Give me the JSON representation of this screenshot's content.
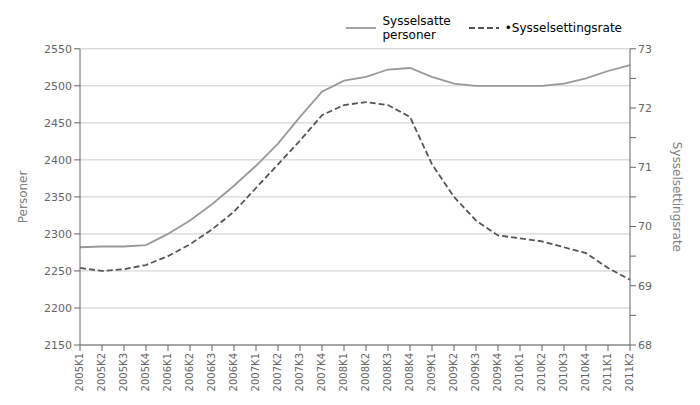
{
  "chart_data": {
    "type": "line",
    "categories": [
      "2005K1",
      "2005K2",
      "2005K3",
      "2005K4",
      "2006K1",
      "2006K2",
      "2006K3",
      "2006K4",
      "2007K1",
      "2007K2",
      "2007K3",
      "2007K4",
      "2008K1",
      "2008K2",
      "2008K3",
      "2008K4",
      "2009K1",
      "2009K2",
      "2009K3",
      "2009K4",
      "2010K1",
      "2010K2",
      "2010K3",
      "2010K4",
      "2011K1",
      "2011K2"
    ],
    "series": [
      {
        "name": "Sysselsatte\npersoner",
        "color": "#999999",
        "line_style": "solid",
        "values": [
          2282,
          2283,
          2283,
          2285,
          2300,
          2318,
          2340,
          2365,
          2392,
          2422,
          2458,
          2492,
          2507,
          2512,
          2522,
          2524,
          2512,
          2503,
          2500,
          2500,
          2500,
          2500,
          2503,
          2510,
          2520,
          2528
        ]
      },
      {
        "name": "•Sysselsettingsrate",
        "color": "#555555",
        "line_style": "dashed",
        "axis": "y2",
        "values": [
          69.3,
          69.25,
          69.28,
          69.35,
          69.5,
          69.7,
          69.95,
          70.25,
          70.65,
          71.05,
          71.45,
          71.88,
          72.05,
          72.1,
          72.05,
          71.85,
          71.05,
          70.5,
          70.1,
          69.85,
          69.8,
          69.75,
          69.65,
          69.55,
          69.3,
          69.1
        ]
      }
    ],
    "ylabel": "Personer",
    "y2label": "Sysselsettingsrate",
    "ylim": [
      2150,
      2550
    ],
    "yticks": [
      2150,
      2200,
      2250,
      2300,
      2350,
      2400,
      2450,
      2500,
      2550
    ],
    "y2lim": [
      68,
      73
    ],
    "y2ticks": [
      68,
      {
        "value": 68.5,
        "label": ""
      },
      69,
      {
        "value": 69.5,
        "label": ""
      },
      70,
      {
        "value": 70.5,
        "label": ""
      },
      71,
      {
        "value": 71.5,
        "label": ""
      },
      72,
      {
        "value": 72.5,
        "label": ""
      },
      73
    ],
    "grid": true,
    "legend": "upper right"
  }
}
